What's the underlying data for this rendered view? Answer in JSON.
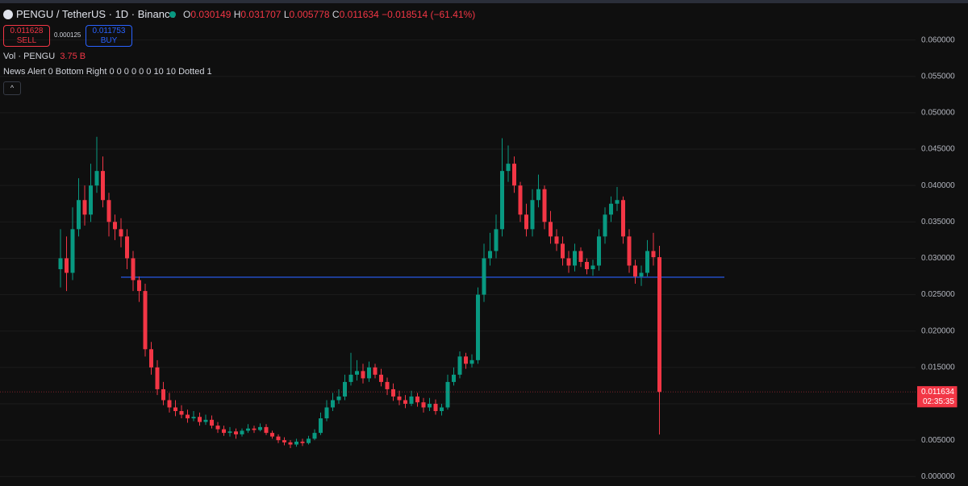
{
  "header": {
    "symbol": "PENGU / TetherUS · 1D · Binance",
    "ohlc_labels": [
      "O",
      "H",
      "L",
      "C"
    ],
    "change": "−0.018514 (−61.41%)",
    "sell": {
      "price": "0.011628",
      "label": "SELL"
    },
    "spread": "0.000125",
    "buy": {
      "price": "0.011753",
      "label": "BUY"
    },
    "volume": {
      "label": "Vol · PENGU",
      "value": "3.75 B"
    },
    "news": "News Alert 0 Bottom Right 0 0 0 0 0 0 10 10 Dotted 1",
    "countdown": "02:35:35"
  },
  "chart_data": {
    "type": "candlestick",
    "up_color": "#089981",
    "down_color": "#f23645",
    "open": [
      0.0285,
      0.03,
      0.028,
      0.034,
      0.038,
      0.036,
      0.04,
      0.042,
      0.038,
      0.035,
      0.034,
      0.033,
      0.03,
      0.027,
      0.0255,
      0.0175,
      0.015,
      0.012,
      0.0105,
      0.0095,
      0.009,
      0.0085,
      0.008,
      0.0082,
      0.0075,
      0.0078,
      0.007,
      0.0065,
      0.006,
      0.0062,
      0.0058,
      0.0063,
      0.0066,
      0.0064,
      0.0068,
      0.006,
      0.0055,
      0.005,
      0.0047,
      0.0044,
      0.0048,
      0.0046,
      0.0052,
      0.006,
      0.008,
      0.0095,
      0.0105,
      0.011,
      0.013,
      0.014,
      0.0145,
      0.0135,
      0.015,
      0.014,
      0.013,
      0.012,
      0.011,
      0.0105,
      0.01,
      0.011,
      0.0102,
      0.0095,
      0.01,
      0.009,
      0.0095,
      0.013,
      0.014,
      0.0165,
      0.0155,
      0.016,
      0.025,
      0.03,
      0.031,
      0.034,
      0.042,
      0.043,
      0.04,
      0.036,
      0.034,
      0.038,
      0.0395,
      0.035,
      0.033,
      0.032,
      0.03,
      0.029,
      0.031,
      0.0295,
      0.0285,
      0.029,
      0.033,
      0.036,
      0.0375,
      0.038,
      0.033,
      0.029,
      0.0275,
      0.028,
      0.031,
      0.030149
    ],
    "high": [
      0.034,
      0.033,
      0.037,
      0.041,
      0.04,
      0.043,
      0.0467,
      0.044,
      0.039,
      0.036,
      0.0355,
      0.034,
      0.031,
      0.0275,
      0.0265,
      0.0185,
      0.016,
      0.013,
      0.0115,
      0.0105,
      0.0098,
      0.0092,
      0.009,
      0.0088,
      0.0085,
      0.0084,
      0.0075,
      0.007,
      0.0068,
      0.0066,
      0.0066,
      0.0072,
      0.007,
      0.0073,
      0.0072,
      0.0063,
      0.0058,
      0.0054,
      0.005,
      0.0052,
      0.0052,
      0.0056,
      0.0065,
      0.0088,
      0.0105,
      0.0115,
      0.012,
      0.014,
      0.017,
      0.016,
      0.0155,
      0.0158,
      0.0155,
      0.0148,
      0.0136,
      0.0128,
      0.0118,
      0.0112,
      0.0118,
      0.0115,
      0.0108,
      0.0108,
      0.0106,
      0.01,
      0.014,
      0.015,
      0.0172,
      0.017,
      0.0168,
      0.026,
      0.032,
      0.0335,
      0.036,
      0.0465,
      0.0455,
      0.044,
      0.0405,
      0.0375,
      0.0395,
      0.0415,
      0.04,
      0.0365,
      0.034,
      0.033,
      0.031,
      0.032,
      0.0315,
      0.03,
      0.0298,
      0.034,
      0.037,
      0.0385,
      0.0398,
      0.0385,
      0.034,
      0.0298,
      0.029,
      0.0325,
      0.0335,
      0.031707
    ],
    "low": [
      0.026,
      0.0255,
      0.027,
      0.033,
      0.0345,
      0.035,
      0.039,
      0.037,
      0.033,
      0.0325,
      0.0315,
      0.0285,
      0.0255,
      0.024,
      0.0165,
      0.014,
      0.0112,
      0.0098,
      0.0088,
      0.0083,
      0.008,
      0.0074,
      0.0076,
      0.007,
      0.0071,
      0.0066,
      0.006,
      0.0056,
      0.0055,
      0.0052,
      0.0055,
      0.006,
      0.006,
      0.0062,
      0.0057,
      0.0052,
      0.0046,
      0.0043,
      0.0039,
      0.0041,
      0.0042,
      0.0044,
      0.005,
      0.0057,
      0.0076,
      0.009,
      0.01,
      0.0105,
      0.0125,
      0.0132,
      0.0128,
      0.013,
      0.0135,
      0.0124,
      0.0112,
      0.0104,
      0.0098,
      0.0094,
      0.0097,
      0.0096,
      0.0088,
      0.009,
      0.0085,
      0.0084,
      0.0092,
      0.0125,
      0.0135,
      0.0148,
      0.015,
      0.0155,
      0.024,
      0.029,
      0.03,
      0.033,
      0.0405,
      0.039,
      0.035,
      0.033,
      0.033,
      0.037,
      0.034,
      0.032,
      0.031,
      0.029,
      0.028,
      0.0282,
      0.0288,
      0.0278,
      0.0276,
      0.0283,
      0.032,
      0.035,
      0.0365,
      0.032,
      0.028,
      0.0265,
      0.0262,
      0.0275,
      0.029,
      0.005778
    ],
    "close": [
      0.03,
      0.028,
      0.034,
      0.038,
      0.036,
      0.04,
      0.042,
      0.038,
      0.035,
      0.034,
      0.033,
      0.03,
      0.027,
      0.0255,
      0.0175,
      0.015,
      0.012,
      0.0105,
      0.0095,
      0.009,
      0.0085,
      0.008,
      0.0082,
      0.0075,
      0.0078,
      0.007,
      0.0065,
      0.006,
      0.0062,
      0.0058,
      0.0063,
      0.0066,
      0.0064,
      0.0068,
      0.006,
      0.0055,
      0.005,
      0.0047,
      0.0044,
      0.0048,
      0.0046,
      0.0052,
      0.006,
      0.008,
      0.0095,
      0.0105,
      0.011,
      0.013,
      0.014,
      0.0145,
      0.0135,
      0.015,
      0.014,
      0.013,
      0.012,
      0.011,
      0.0105,
      0.01,
      0.011,
      0.0102,
      0.0095,
      0.01,
      0.009,
      0.0095,
      0.013,
      0.014,
      0.0165,
      0.0155,
      0.016,
      0.025,
      0.03,
      0.031,
      0.034,
      0.042,
      0.043,
      0.04,
      0.036,
      0.034,
      0.038,
      0.0395,
      0.035,
      0.033,
      0.032,
      0.03,
      0.029,
      0.031,
      0.0295,
      0.0285,
      0.029,
      0.033,
      0.036,
      0.0375,
      0.038,
      0.033,
      0.029,
      0.0275,
      0.028,
      0.031,
      0.030149,
      0.011634
    ],
    "ylim": [
      -0.0013,
      0.0655
    ],
    "yticks": [
      {
        "value": 0,
        "label": "0.000000"
      },
      {
        "value": 0.005,
        "label": "0.005000"
      },
      {
        "value": 0.01,
        "label": "0.010000"
      },
      {
        "value": 0.015,
        "label": "0.015000"
      },
      {
        "value": 0.02,
        "label": "0.020000"
      },
      {
        "value": 0.025,
        "label": "0.025000"
      },
      {
        "value": 0.03,
        "label": "0.030000"
      },
      {
        "value": 0.035,
        "label": "0.035000"
      },
      {
        "value": 0.04,
        "label": "0.040000"
      },
      {
        "value": 0.045,
        "label": "0.045000"
      },
      {
        "value": 0.05,
        "label": "0.050000"
      },
      {
        "value": 0.055,
        "label": "0.055000"
      },
      {
        "value": 0.06,
        "label": "0.060000"
      }
    ],
    "grid": true,
    "hline": {
      "value": 0.0274,
      "color": "#2962ff"
    }
  }
}
